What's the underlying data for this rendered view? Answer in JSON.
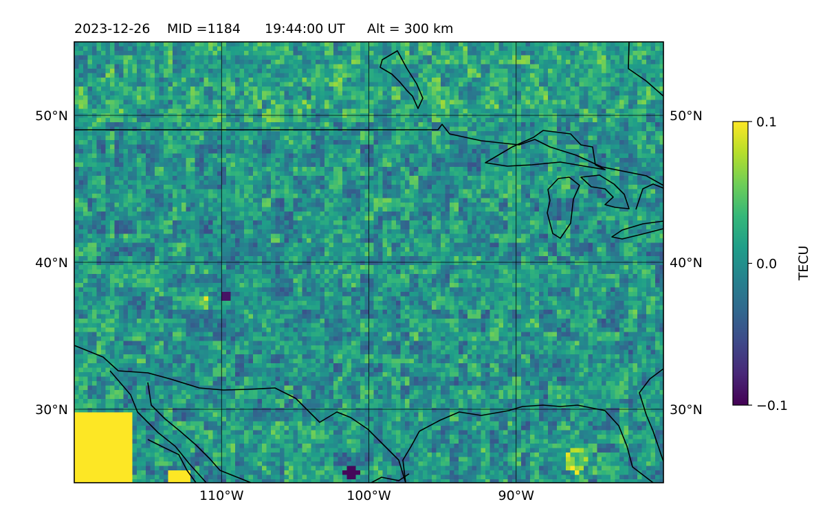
{
  "title": {
    "date": "2023-12-26",
    "mid": "MID =1184",
    "time": "19:44:00  UT",
    "alt": "Alt = 300 km"
  },
  "map": {
    "projection": "plate-carree",
    "lon_range_deg": [
      -120,
      -80
    ],
    "lat_range_deg": [
      25,
      55
    ],
    "meridians": [
      {
        "lon": -110,
        "label": "110°W"
      },
      {
        "lon": -100,
        "label": "100°W"
      },
      {
        "lon": -90,
        "label": "90°W"
      }
    ],
    "parallels": [
      {
        "lat": 30,
        "label": "30°N"
      },
      {
        "lat": 40,
        "label": "40°N"
      },
      {
        "lat": 50,
        "label": "50°N"
      }
    ],
    "gridlines": true,
    "features": [
      "coastlines",
      "country borders",
      "Great Lakes"
    ],
    "field": "TEC perturbation map, viridis colormap",
    "data_pattern": "mottled green/teal field, mostly near 0; saturated yellow (+0.1) region in far southwest corner; small yellow patches near 33°N 112°W and 28°N 86°W; dark purple (-0.1) spots scattered"
  },
  "colorbar": {
    "label": "TECU",
    "colormap": "viridis",
    "range": [
      -0.1,
      0.1
    ],
    "ticks": [
      {
        "value": 0.1,
        "label": "0.1"
      },
      {
        "value": 0.0,
        "label": "0.0"
      },
      {
        "value": -0.1,
        "label": "−0.1"
      }
    ],
    "colors": [
      "#440154",
      "#482878",
      "#3e4989",
      "#31688e",
      "#26828e",
      "#1f9e89",
      "#35b779",
      "#6ece58",
      "#b5de2b",
      "#fde725"
    ]
  }
}
